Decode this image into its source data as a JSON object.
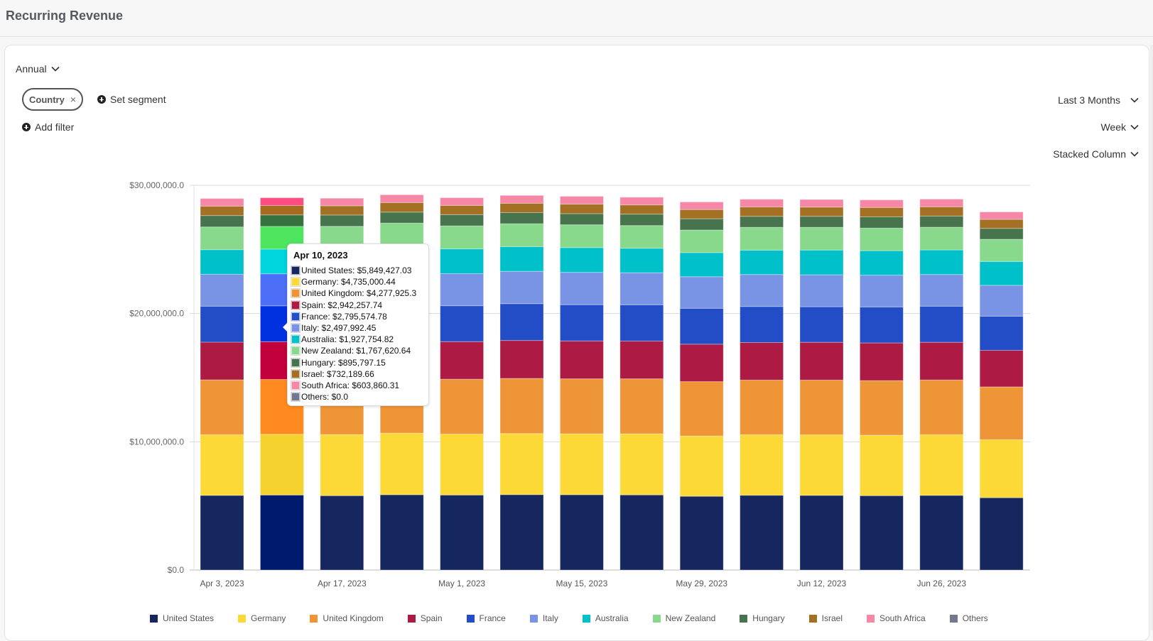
{
  "header": {
    "title": "Recurring Revenue"
  },
  "controls": {
    "period_type": "Annual",
    "segment_chip": "Country",
    "segment_chip_remove": "×",
    "set_segment": "Set segment",
    "add_filter": "Add filter",
    "date_range": "Last 3 Months",
    "granularity": "Week",
    "chart_type": "Stacked Column"
  },
  "colors": {
    "United States": "#16265e",
    "Germany": "#fcd936",
    "United Kingdom": "#ee9637",
    "Spain": "#ad1b44",
    "France": "#234cc7",
    "Italy": "#7994e5",
    "Australia": "#00c0c9",
    "New Zealand": "#89d98c",
    "Hungary": "#48744d",
    "Israel": "#a47124",
    "South Africa": "#f787a6",
    "Others": "#76778f"
  },
  "highlight_colors": {
    "United States": "#001a6e",
    "Germany": "#f6d22f",
    "United Kingdom": "#ff8a1f",
    "Spain": "#c2003b",
    "France": "#0031e0",
    "Italy": "#4d6ff7",
    "Australia": "#00d4dd",
    "New Zealand": "#4ee45e",
    "Hungary": "#35723d",
    "Israel": "#a76a1e",
    "South Africa": "#ff4d82",
    "Others": "#6a6b8a"
  },
  "tooltip": {
    "title": "Apr 10, 2023",
    "rows": [
      {
        "label": "United States: $5,849,427.03",
        "series": "United States"
      },
      {
        "label": "Germany: $4,735,000.44",
        "series": "Germany"
      },
      {
        "label": "United Kingdom: $4,277,925.3",
        "series": "United Kingdom"
      },
      {
        "label": "Spain: $2,942,257.74",
        "series": "Spain"
      },
      {
        "label": "France: $2,795,574.78",
        "series": "France"
      },
      {
        "label": "Italy: $2,497,992.45",
        "series": "Italy"
      },
      {
        "label": "Australia: $1,927,754.82",
        "series": "Australia"
      },
      {
        "label": "New Zealand: $1,767,620.64",
        "series": "New Zealand"
      },
      {
        "label": "Hungary: $895,797.15",
        "series": "Hungary"
      },
      {
        "label": "Israel: $732,189.66",
        "series": "Israel"
      },
      {
        "label": "South Africa: $603,860.31",
        "series": "South Africa"
      },
      {
        "label": "Others: $0.0",
        "series": "Others"
      }
    ]
  },
  "chart_data": {
    "type": "bar",
    "stacked": true,
    "title": "",
    "xlabel": "",
    "ylabel": "",
    "ylim": [
      0,
      30000000
    ],
    "yticks": [
      0,
      10000000,
      20000000,
      30000000
    ],
    "ytick_labels": [
      "$0.0",
      "$10,000,000.0",
      "$20,000,000.0",
      "$30,000,000.0"
    ],
    "grid": true,
    "legend_position": "bottom",
    "highlighted_category_index": 1,
    "categories": [
      "Apr 3, 2023",
      "Apr 10, 2023",
      "Apr 17, 2023",
      "Apr 24, 2023",
      "May 1, 2023",
      "May 8, 2023",
      "May 15, 2023",
      "May 22, 2023",
      "May 29, 2023",
      "Jun 5, 2023",
      "Jun 12, 2023",
      "Jun 19, 2023",
      "Jun 26, 2023",
      "Jul 3, 2023"
    ],
    "xtick_labels": [
      "Apr 3, 2023",
      "",
      "Apr 17, 2023",
      "",
      "May 1, 2023",
      "",
      "May 15, 2023",
      "",
      "May 29, 2023",
      "",
      "Jun 12, 2023",
      "",
      "Jun 26, 2023",
      ""
    ],
    "series": [
      {
        "name": "United States",
        "values": [
          5820000,
          5849427.03,
          5800000,
          5870000,
          5850000,
          5880000,
          5870000,
          5860000,
          5750000,
          5830000,
          5820000,
          5800000,
          5820000,
          5640000
        ]
      },
      {
        "name": "Germany",
        "values": [
          4730000,
          4735000.44,
          4760000,
          4800000,
          4750000,
          4760000,
          4750000,
          4760000,
          4700000,
          4720000,
          4720000,
          4710000,
          4730000,
          4520000
        ]
      },
      {
        "name": "United Kingdom",
        "values": [
          4280000,
          4277925.3,
          4270000,
          4300000,
          4280000,
          4300000,
          4290000,
          4290000,
          4240000,
          4260000,
          4270000,
          4260000,
          4270000,
          4120000
        ]
      },
      {
        "name": "Spain",
        "values": [
          2940000,
          2942257.74,
          2950000,
          2960000,
          2930000,
          2960000,
          2950000,
          2940000,
          2920000,
          2930000,
          2950000,
          2940000,
          2940000,
          2850000
        ]
      },
      {
        "name": "France",
        "values": [
          2800000,
          2795574.78,
          2810000,
          2850000,
          2800000,
          2870000,
          2830000,
          2830000,
          2800000,
          2810000,
          2770000,
          2800000,
          2810000,
          2660000
        ]
      },
      {
        "name": "Italy",
        "values": [
          2490000,
          2497992.45,
          2500000,
          2530000,
          2500000,
          2520000,
          2520000,
          2500000,
          2460000,
          2490000,
          2490000,
          2480000,
          2470000,
          2410000
        ]
      },
      {
        "name": "Australia",
        "values": [
          1920000,
          1927754.82,
          1930000,
          1940000,
          1930000,
          1920000,
          1930000,
          1910000,
          1880000,
          1900000,
          1930000,
          1910000,
          1920000,
          1860000
        ]
      },
      {
        "name": "New Zealand",
        "values": [
          1770000,
          1767620.64,
          1780000,
          1800000,
          1790000,
          1790000,
          1780000,
          1770000,
          1760000,
          1780000,
          1770000,
          1760000,
          1770000,
          1730000
        ]
      },
      {
        "name": "Hungary",
        "values": [
          890000,
          895797.15,
          880000,
          860000,
          880000,
          870000,
          870000,
          890000,
          880000,
          860000,
          860000,
          880000,
          870000,
          850000
        ]
      },
      {
        "name": "Israel",
        "values": [
          730000,
          732189.66,
          720000,
          740000,
          720000,
          730000,
          740000,
          720000,
          720000,
          730000,
          720000,
          730000,
          720000,
          700000
        ]
      },
      {
        "name": "South Africa",
        "values": [
          600000,
          603860.31,
          590000,
          610000,
          600000,
          610000,
          610000,
          600000,
          590000,
          600000,
          590000,
          590000,
          600000,
          580000
        ]
      },
      {
        "name": "Others",
        "values": [
          0,
          0,
          0,
          0,
          0,
          0,
          0,
          0,
          0,
          0,
          0,
          0,
          0,
          0
        ]
      }
    ]
  }
}
